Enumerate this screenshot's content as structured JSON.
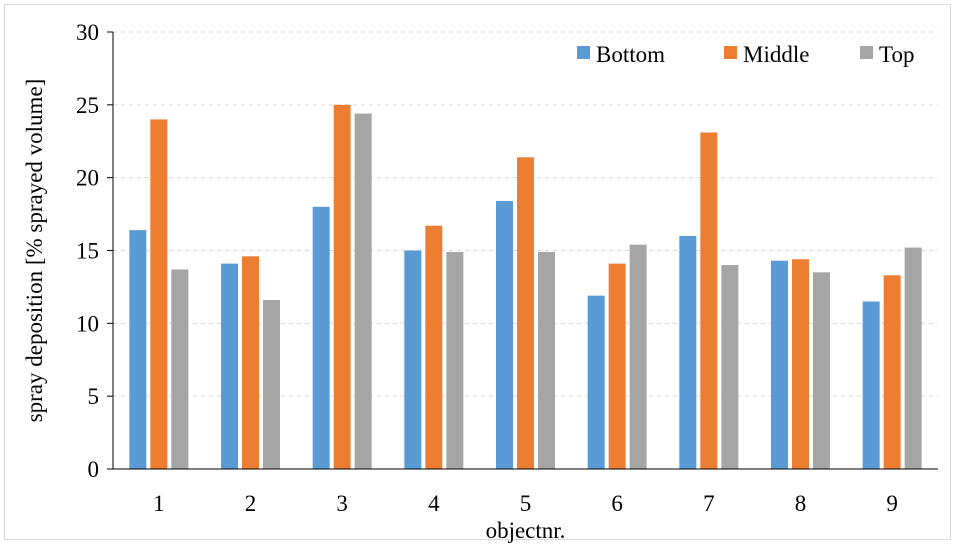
{
  "chart_data": {
    "type": "bar",
    "title": "",
    "xlabel": "objectnr.",
    "ylabel": "spray deposition [% sprayed volume]",
    "ylim": [
      0,
      30
    ],
    "yticks": [
      "0",
      "5",
      "10",
      "15",
      "20",
      "25",
      "30"
    ],
    "categories": [
      "1",
      "2",
      "3",
      "4",
      "5",
      "6",
      "7",
      "8",
      "9"
    ],
    "grid": true,
    "legend_position": "top-right",
    "series": [
      {
        "name": "Bottom",
        "color": "#5b9bd5",
        "values": [
          16.4,
          14.1,
          18.0,
          15.0,
          18.4,
          11.9,
          16.0,
          14.3,
          11.5
        ]
      },
      {
        "name": "Middle",
        "color": "#ed7d31",
        "values": [
          24.0,
          14.6,
          25.0,
          16.7,
          21.4,
          14.1,
          23.1,
          14.4,
          13.3
        ]
      },
      {
        "name": "Top",
        "color": "#a5a5a5",
        "values": [
          13.7,
          11.6,
          24.4,
          14.9,
          14.9,
          15.4,
          14.0,
          13.5,
          15.2
        ]
      }
    ]
  }
}
